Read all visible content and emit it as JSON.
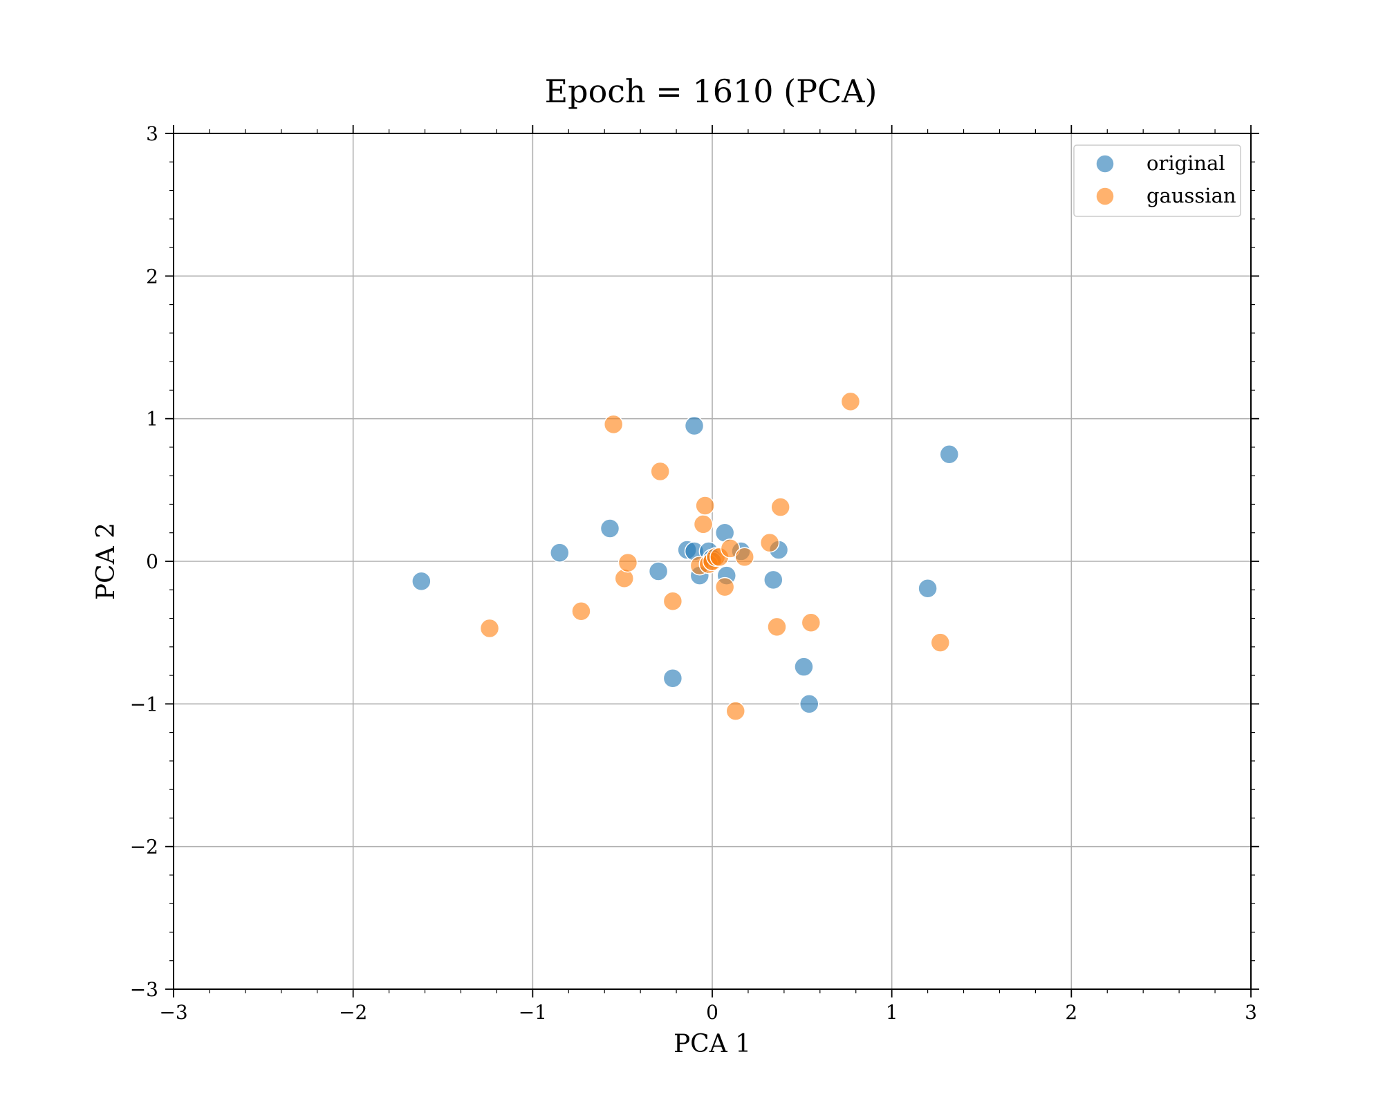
{
  "chart_data": {
    "type": "scatter",
    "title": "Epoch = 1610 (PCA)",
    "xlabel": "PCA 1",
    "ylabel": "PCA 2",
    "xlim": [
      -3,
      3
    ],
    "ylim": [
      -3,
      3
    ],
    "xticks": [
      -3,
      -2,
      -1,
      0,
      1,
      2,
      3
    ],
    "yticks": [
      -3,
      -2,
      -1,
      0,
      1,
      2,
      3
    ],
    "xtick_labels": [
      "−3",
      "−2",
      "−1",
      "0",
      "1",
      "2",
      "3"
    ],
    "ytick_labels": [
      "−3",
      "−2",
      "−1",
      "0",
      "1",
      "2",
      "3"
    ],
    "grid": true,
    "legend_position": "top-right",
    "series": [
      {
        "name": "original",
        "color": "#1f77b4",
        "points": [
          [
            -1.62,
            -0.14
          ],
          [
            -0.85,
            0.06
          ],
          [
            -0.57,
            0.23
          ],
          [
            -0.3,
            -0.07
          ],
          [
            -0.22,
            -0.82
          ],
          [
            -0.1,
            0.95
          ],
          [
            -0.14,
            0.08
          ],
          [
            -0.1,
            0.07
          ],
          [
            -0.07,
            -0.1
          ],
          [
            -0.02,
            0.07
          ],
          [
            0.0,
            0.02
          ],
          [
            0.07,
            0.2
          ],
          [
            0.08,
            -0.1
          ],
          [
            0.16,
            0.07
          ],
          [
            0.34,
            -0.13
          ],
          [
            0.37,
            0.08
          ],
          [
            0.51,
            -0.74
          ],
          [
            0.54,
            -1.0
          ],
          [
            1.2,
            -0.19
          ],
          [
            1.32,
            0.75
          ]
        ]
      },
      {
        "name": "gaussian",
        "color": "#ff7f0e",
        "points": [
          [
            -1.24,
            -0.47
          ],
          [
            -0.73,
            -0.35
          ],
          [
            -0.55,
            0.96
          ],
          [
            -0.49,
            -0.12
          ],
          [
            -0.47,
            -0.01
          ],
          [
            -0.29,
            0.63
          ],
          [
            -0.22,
            -0.28
          ],
          [
            -0.05,
            0.26
          ],
          [
            -0.04,
            0.39
          ],
          [
            -0.07,
            -0.03
          ],
          [
            -0.02,
            -0.02
          ],
          [
            0.0,
            0.0
          ],
          [
            0.02,
            0.03
          ],
          [
            0.04,
            0.03
          ],
          [
            0.07,
            -0.18
          ],
          [
            0.1,
            0.09
          ],
          [
            0.13,
            -1.05
          ],
          [
            0.18,
            0.03
          ],
          [
            0.32,
            0.13
          ],
          [
            0.36,
            -0.46
          ],
          [
            0.38,
            0.38
          ],
          [
            0.55,
            -0.43
          ],
          [
            0.77,
            1.12
          ],
          [
            1.27,
            -0.57
          ]
        ]
      }
    ]
  }
}
